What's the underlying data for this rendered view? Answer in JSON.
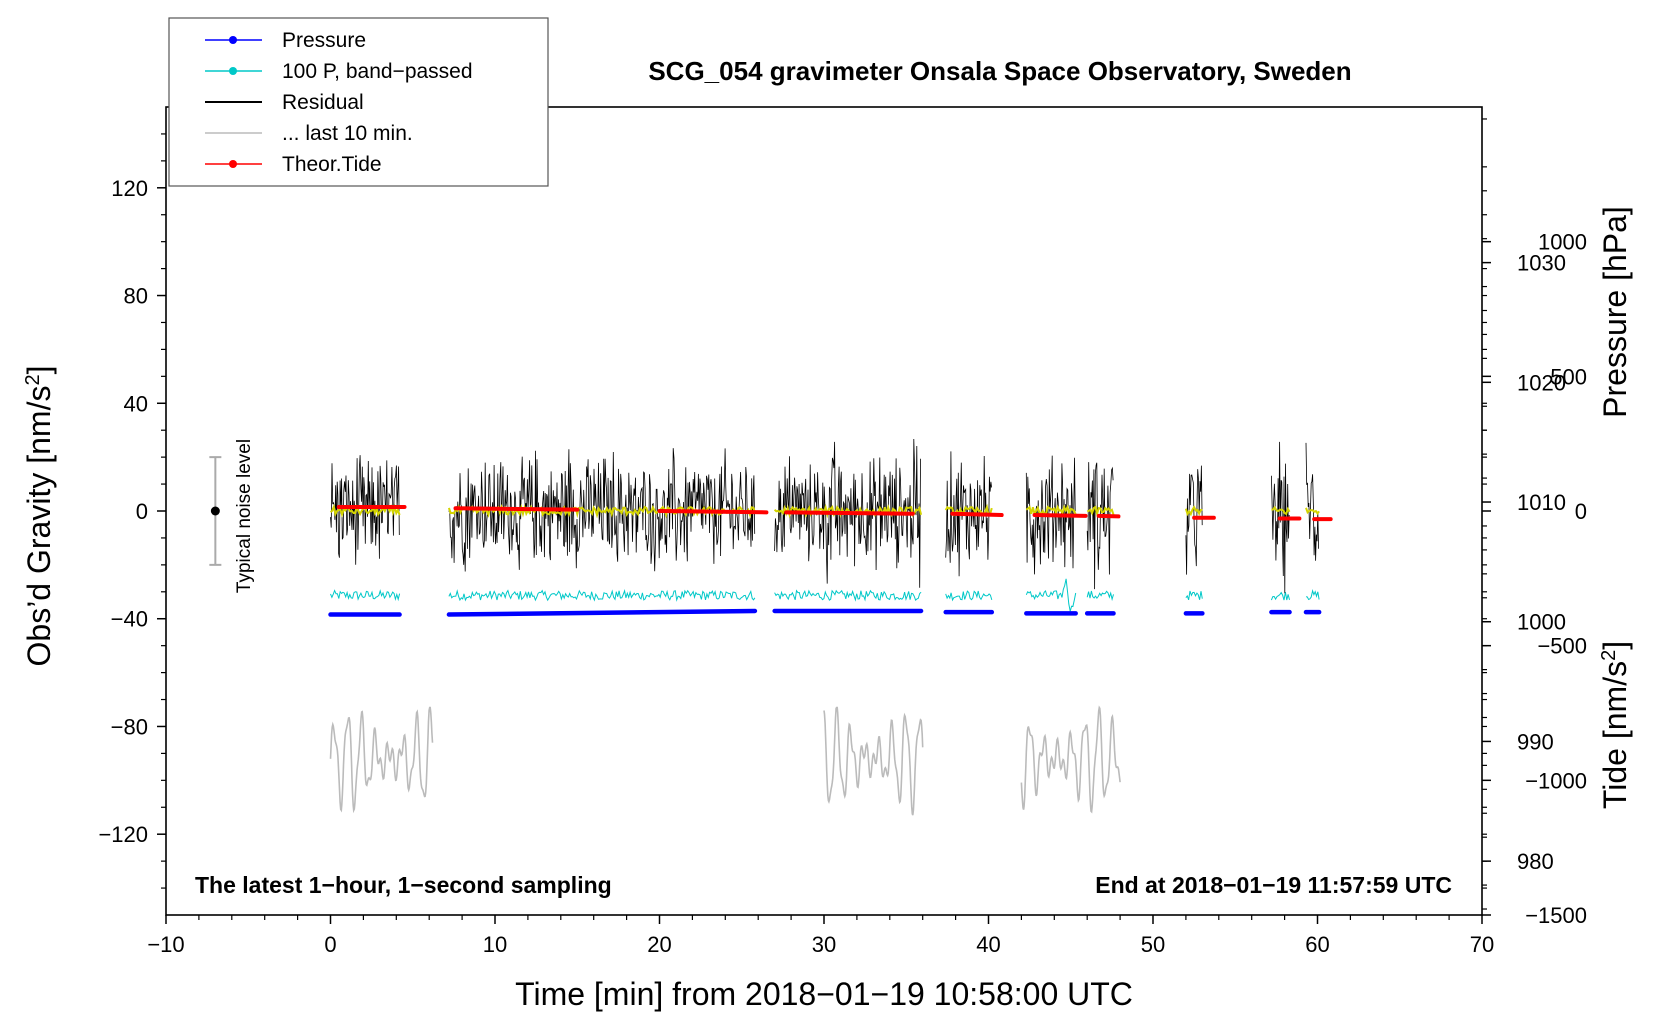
{
  "chart_data": {
    "type": "line",
    "title": "SCG_054 gravimeter Onsala Space Observatory, Sweden",
    "xlabel": "Time [min] from 2018−01−19 10:58:00 UTC",
    "ylabel_left_main": "Obs’d Gravity [nm/s",
    "ylabel_left_sup": "2",
    "ylabel_left_close": "]",
    "ylabel_right_top": "Pressure [hPa]",
    "ylabel_right_bottom_main": "Tide [nm/s",
    "ylabel_right_bottom_sup": "2",
    "ylabel_right_bottom_close": "]",
    "annotation_left": "The latest 1−hour, 1−second sampling",
    "annotation_right": "End at 2018−01−19 11:57:59 UTC",
    "noise_label": "Typical noise level",
    "xlim": [
      -10,
      70
    ],
    "ylim": [
      -150,
      150
    ],
    "pressure_lim": [
      975.5,
      1043
    ],
    "tide_lim": [
      -1500,
      1500
    ],
    "x_ticks": [
      -10,
      0,
      10,
      20,
      30,
      40,
      50,
      60,
      70
    ],
    "x_tick_labels": [
      "−10",
      "0",
      "10",
      "20",
      "30",
      "40",
      "50",
      "60",
      "70"
    ],
    "y_ticks": [
      -120,
      -80,
      -40,
      0,
      40,
      80,
      120
    ],
    "y_tick_labels": [
      "−120",
      "−80",
      "−40",
      "0",
      "40",
      "80",
      "120"
    ],
    "pressure_ticks": [
      980,
      990,
      1000,
      1010,
      1020,
      1030
    ],
    "pressure_tick_labels": [
      "980",
      "990",
      "1000",
      "1010",
      "1020",
      "1030"
    ],
    "tide_ticks": [
      -1500,
      -1000,
      -500,
      0,
      500,
      1000
    ],
    "tide_tick_labels": [
      "−1500",
      "−1000",
      "−500",
      "0",
      "500",
      "1000"
    ],
    "legend": [
      {
        "label": "Pressure",
        "color": "#0000ff",
        "marker": true
      },
      {
        "label": "100 P, band−passed",
        "color": "#00c8c8",
        "marker": true
      },
      {
        "label": "Residual",
        "color": "#000000",
        "marker": false
      },
      {
        "label": "... last 10 min.",
        "color": "#bbbbbb",
        "marker": false
      },
      {
        "label": "Theor.Tide",
        "color": "#ff0000",
        "marker": true
      }
    ],
    "data_segments": [
      [
        0,
        4.2
      ],
      [
        7.2,
        25.8
      ],
      [
        27.0,
        35.9
      ],
      [
        37.4,
        40.2
      ],
      [
        42.3,
        45.3
      ],
      [
        46.0,
        47.6
      ],
      [
        52.0,
        53.0
      ],
      [
        57.2,
        58.3
      ],
      [
        59.3,
        60.1
      ]
    ],
    "series": [
      {
        "name": "Pressure",
        "color": "#0000ff",
        "axis": "pressure_hPa",
        "x": [
          0,
          10,
          20,
          25.8,
          27,
          30,
          35.9,
          37.4,
          40.2,
          42.3,
          45.3,
          46,
          47.6,
          52,
          53,
          57.2,
          58.3,
          59.3,
          60.1
        ],
        "values": [
          1000.6,
          1000.6,
          1000.7,
          1000.9,
          1000.9,
          1000.9,
          1000.9,
          1000.8,
          1000.8,
          1000.7,
          1000.7,
          1000.7,
          1000.7,
          1000.7,
          1000.7,
          1000.8,
          1000.8,
          1000.8,
          1000.8
        ]
      },
      {
        "name": "100 P, band−passed",
        "color": "#00c8c8",
        "axis": "pressure_hPa",
        "baseline": 1002.2,
        "amplitude": 0.8
      },
      {
        "name": "Residual",
        "color": "#000000",
        "axis": "gravity_nm_s2",
        "baseline": 0,
        "typical_amplitude": 25,
        "peak_positive": 39,
        "peak_negative": -38
      },
      {
        "name": "Residual (smoothed)",
        "color": "#d4d400",
        "axis": "gravity_nm_s2",
        "baseline": 0,
        "amplitude": 1.5
      },
      {
        "name": "... last 10 min.",
        "color": "#bbbbbb",
        "axis": "gravity_nm_s2",
        "windows": [
          [
            0,
            6.2
          ],
          [
            30.0,
            36.0
          ],
          [
            42.0,
            48.0
          ]
        ],
        "min": -126,
        "max": -73,
        "center": -92
      },
      {
        "name": "Theor.Tide",
        "color": "#ff0000",
        "axis": "tide_nm_s2",
        "x": [
          0.5,
          4.5,
          7.6,
          15,
          20,
          26.5,
          27.7,
          35.4,
          37.8,
          40.8,
          42.8,
          45.9,
          46.7,
          47.9,
          52.5,
          53.7,
          57.7,
          58.9,
          59.8,
          60.8
        ],
        "values": [
          15,
          15,
          10,
          5,
          0,
          -5,
          -5,
          -10,
          -10,
          -15,
          -15,
          -18,
          -18,
          -20,
          -25,
          -25,
          -28,
          -28,
          -30,
          -30
        ]
      }
    ],
    "noise_level": {
      "x": -7,
      "center": 0,
      "low": -20,
      "high": 20
    }
  }
}
